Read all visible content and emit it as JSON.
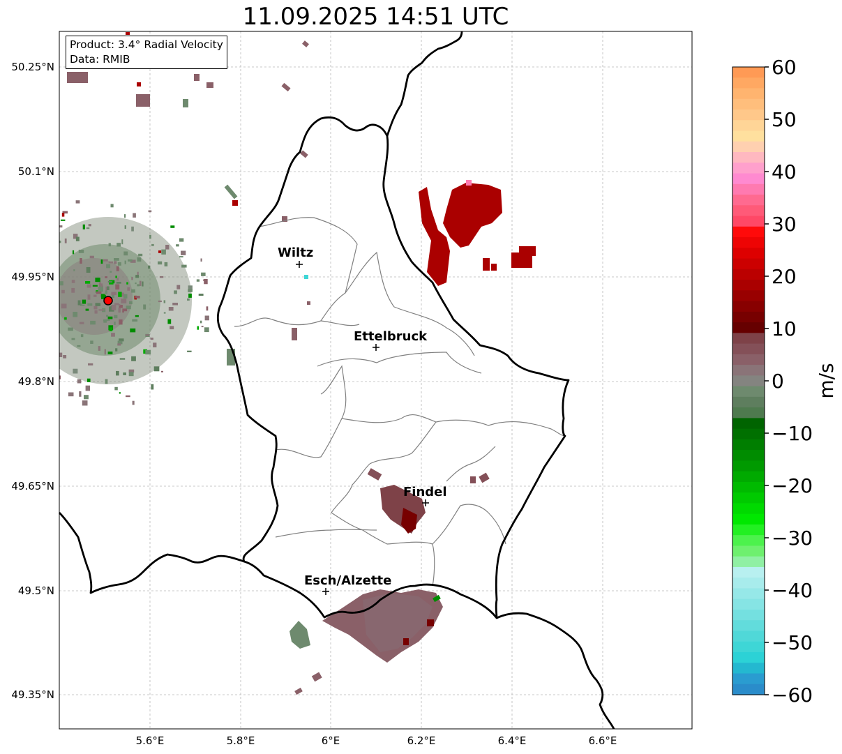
{
  "title": "11.09.2025 14:51 UTC",
  "info": {
    "product": "Product: 3.4° Radial Velocity",
    "source": "Data: RMIB"
  },
  "axes": {
    "lat_ticks": [
      "50.25°N",
      "50.1°N",
      "49.95°N",
      "49.8°N",
      "49.65°N",
      "49.5°N",
      "49.35°N"
    ],
    "lon_ticks": [
      "5.6°E",
      "5.8°E",
      "6°E",
      "6.2°E",
      "6.4°E",
      "6.6°E"
    ],
    "gridlines": true
  },
  "cities": [
    {
      "name": "Wiltz"
    },
    {
      "name": "Ettelbruck"
    },
    {
      "name": "Findel"
    },
    {
      "name": "Esch/Alzette"
    }
  ],
  "radar_site_color": "#ff0000",
  "colorbar": {
    "label": "m/s",
    "ticks": [
      "60",
      "50",
      "40",
      "30",
      "20",
      "10",
      "0",
      "−10",
      "−20",
      "−30",
      "−40",
      "−50",
      "−60"
    ],
    "range": [
      -60,
      60
    ],
    "colors_top_to_bottom": [
      "#ff9a55",
      "#ffa862",
      "#ffb46f",
      "#ffbe7c",
      "#ffc88a",
      "#ffd597",
      "#ffe09e",
      "#ffd0b0",
      "#ffb8c0",
      "#ffa0cc",
      "#ff8ad0",
      "#ff7ab0",
      "#ff6a90",
      "#ff5a78",
      "#ff4866",
      "#ff0a0a",
      "#ee0404",
      "#dd0000",
      "#cc0000",
      "#bb0000",
      "#aa0000",
      "#990000",
      "#880000",
      "#770000",
      "#660000",
      "#7e4248",
      "#845058",
      "#8a6068",
      "#8a7478",
      "#848480",
      "#6e8a6e",
      "#5e7e5e",
      "#4e7a4e",
      "#006400",
      "#007000",
      "#007e00",
      "#008c00",
      "#009a00",
      "#00aa00",
      "#00ba00",
      "#00ca00",
      "#00da00",
      "#00e800",
      "#22f022",
      "#4cf24c",
      "#6ef06e",
      "#90f0a4",
      "#b8f0f0",
      "#a8ecec",
      "#96e8e8",
      "#86e4e4",
      "#74e0e0",
      "#62dcdc",
      "#50d8d8",
      "#3ed6d6",
      "#2cd2d6",
      "#24b8d0",
      "#2a9cd0",
      "#2a8cca"
    ]
  }
}
